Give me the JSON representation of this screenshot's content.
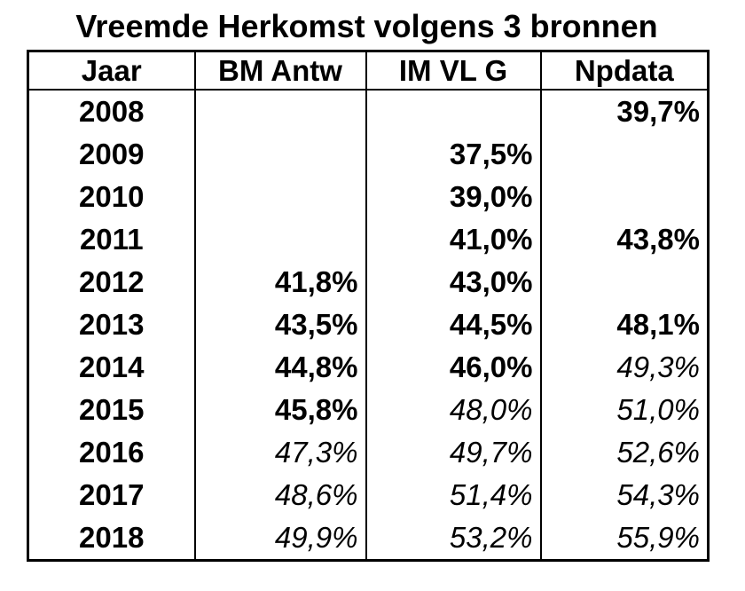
{
  "title": "Vreemde Herkomst volgens 3 bronnen",
  "colors": {
    "text": "#000000",
    "background": "#ffffff",
    "border": "#000000"
  },
  "chart_data": {
    "type": "table",
    "title": "Vreemde Herkomst volgens 3 bronnen",
    "columns": [
      "Jaar",
      "BM Antw",
      "IM VL G",
      "Npdata"
    ],
    "categories": [
      "2008",
      "2009",
      "2010",
      "2011",
      "2012",
      "2013",
      "2014",
      "2015",
      "2016",
      "2017",
      "2018"
    ],
    "series": [
      {
        "name": "BM Antw",
        "values": [
          null,
          null,
          null,
          null,
          41.8,
          43.5,
          44.8,
          45.8,
          47.3,
          48.6,
          49.9
        ]
      },
      {
        "name": "IM VL G",
        "values": [
          null,
          37.5,
          39.0,
          41.0,
          43.0,
          44.5,
          46.0,
          48.0,
          49.7,
          51.4,
          53.2
        ]
      },
      {
        "name": "Npdata",
        "values": [
          39.7,
          null,
          null,
          43.8,
          null,
          48.1,
          49.3,
          51.0,
          52.6,
          54.3,
          55.9
        ]
      }
    ],
    "unit": "%",
    "rows": [
      {
        "year": "2008",
        "values": [
          "",
          "",
          "39,7%"
        ],
        "styles": [
          "",
          "",
          "bold"
        ]
      },
      {
        "year": "2009",
        "values": [
          "",
          "37,5%",
          ""
        ],
        "styles": [
          "",
          "bold",
          ""
        ]
      },
      {
        "year": "2010",
        "values": [
          "",
          "39,0%",
          ""
        ],
        "styles": [
          "",
          "bold",
          ""
        ]
      },
      {
        "year": "2011",
        "values": [
          "",
          "41,0%",
          "43,8%"
        ],
        "styles": [
          "",
          "bold",
          "bold"
        ]
      },
      {
        "year": "2012",
        "values": [
          "41,8%",
          "43,0%",
          ""
        ],
        "styles": [
          "bold",
          "bold",
          ""
        ]
      },
      {
        "year": "2013",
        "values": [
          "43,5%",
          "44,5%",
          "48,1%"
        ],
        "styles": [
          "bold",
          "bold",
          "bold"
        ]
      },
      {
        "year": "2014",
        "values": [
          "44,8%",
          "46,0%",
          "49,3%"
        ],
        "styles": [
          "bold",
          "bold",
          "italic"
        ]
      },
      {
        "year": "2015",
        "values": [
          "45,8%",
          "48,0%",
          "51,0%"
        ],
        "styles": [
          "bold",
          "italic",
          "italic"
        ]
      },
      {
        "year": "2016",
        "values": [
          "47,3%",
          "49,7%",
          "52,6%"
        ],
        "styles": [
          "italic",
          "italic",
          "italic"
        ]
      },
      {
        "year": "2017",
        "values": [
          "48,6%",
          "51,4%",
          "54,3%"
        ],
        "styles": [
          "italic",
          "italic",
          "italic"
        ]
      },
      {
        "year": "2018",
        "values": [
          "49,9%",
          "53,2%",
          "55,9%"
        ],
        "styles": [
          "italic",
          "italic",
          "italic"
        ]
      }
    ]
  }
}
